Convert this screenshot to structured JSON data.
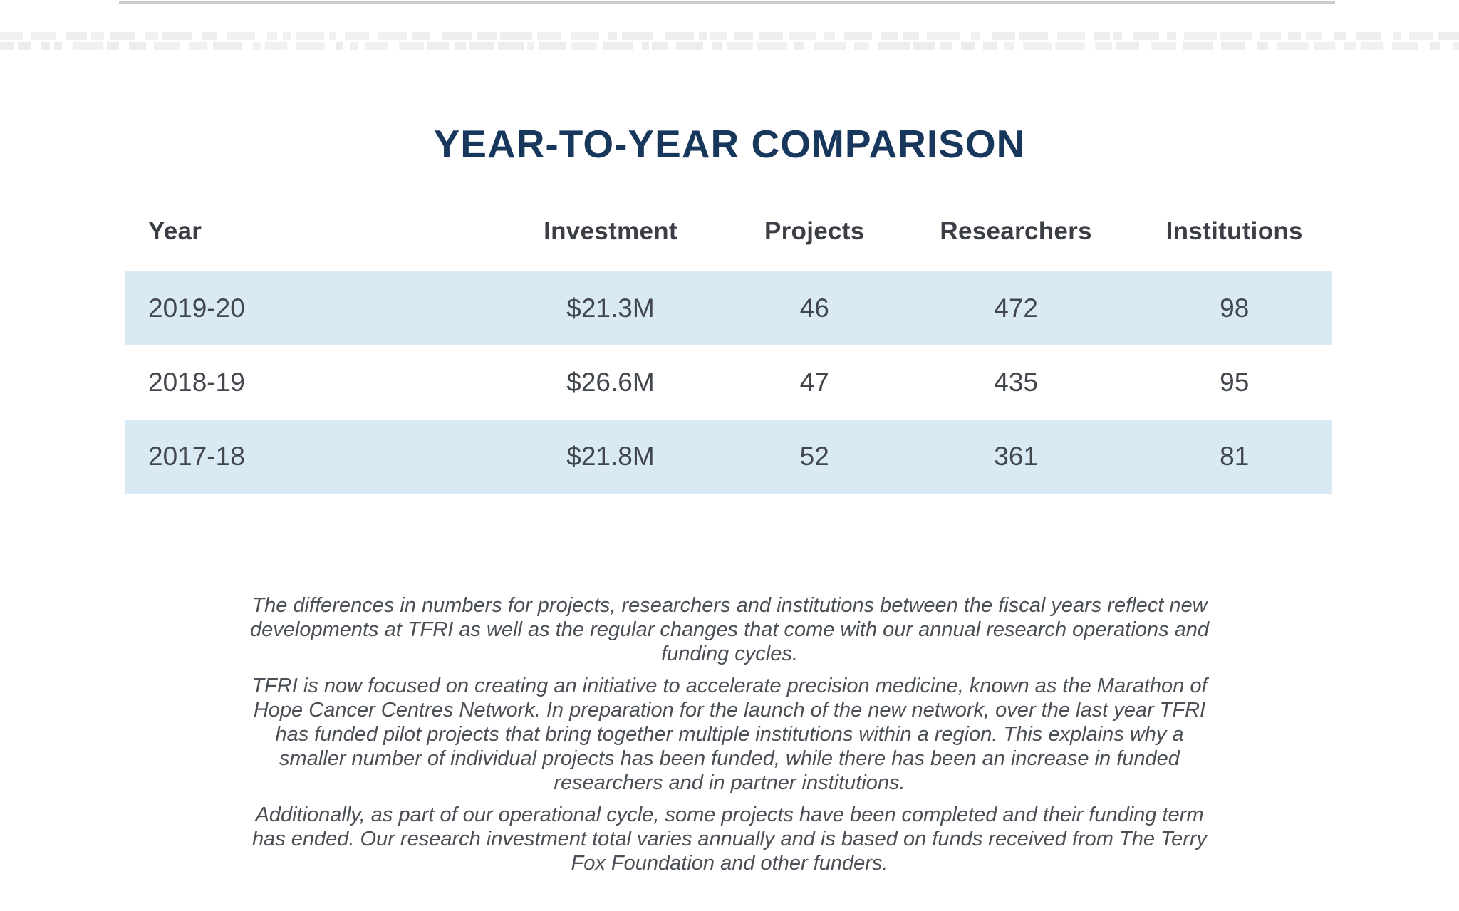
{
  "page": {
    "title": "YEAR-TO-YEAR COMPARISON"
  },
  "table": {
    "columns": [
      "Year",
      "Investment",
      "Projects",
      "Researchers",
      "Institutions"
    ],
    "rows": [
      [
        "2019-20",
        "$21.3M",
        "46",
        "472",
        "98"
      ],
      [
        "2018-19",
        "$26.6M",
        "47",
        "435",
        "95"
      ],
      [
        "2017-18",
        "$21.8M",
        "52",
        "361",
        "81"
      ]
    ]
  },
  "notes": [
    "The differences in numbers for projects, researchers and institutions between the fiscal years reflect new developments at TFRI as well as the regular changes that come with our annual research operations and funding cycles.",
    "TFRI is now focused on creating an initiative to accelerate precision medicine, known as the Marathon of Hope Cancer Centres Network. In preparation for the launch of the new network, over the last year TFRI has funded pilot projects that bring together multiple institutions within a region. This explains why a smaller number of individual projects has been funded, while there has been an increase in funded researchers and in partner institutions.",
    "Additionally, as part of our operational cycle, some projects have been completed and their funding term has ended. Our research investment total varies annually and is based on funds received from The Terry Fox Foundation and other funders."
  ],
  "colors": {
    "title_navy": "#17375C",
    "row_highlight_blue": "#DAEAF5",
    "header_text": "#3B3E44",
    "cell_text": "#42474D",
    "note_text": "#4A4F55",
    "top_rule": "#CBCBCB"
  },
  "chart_data": {
    "type": "table",
    "title": "YEAR-TO-YEAR COMPARISON",
    "columns": [
      "Year",
      "Investment",
      "Projects",
      "Researchers",
      "Institutions"
    ],
    "rows": [
      {
        "Year": "2019-20",
        "Investment": "$21.3M",
        "Projects": 46,
        "Researchers": 472,
        "Institutions": 98
      },
      {
        "Year": "2018-19",
        "Investment": "$26.6M",
        "Projects": 47,
        "Researchers": 435,
        "Institutions": 95
      },
      {
        "Year": "2017-18",
        "Investment": "$21.8M",
        "Projects": 52,
        "Researchers": 361,
        "Institutions": 81
      }
    ]
  }
}
